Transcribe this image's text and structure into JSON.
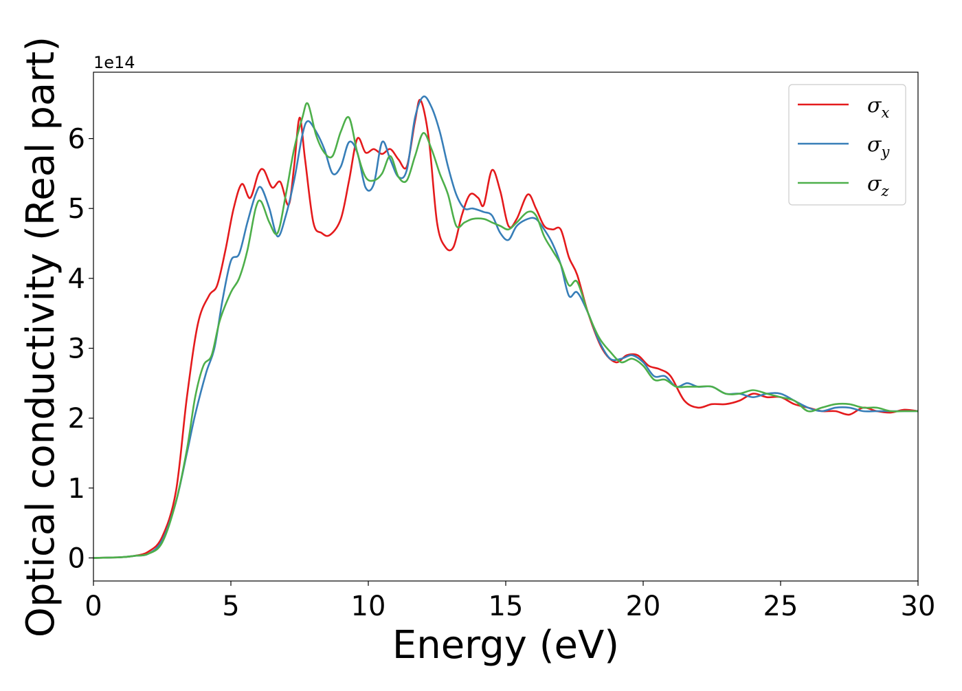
{
  "chart_data": {
    "type": "line",
    "xlabel": "Energy (eV)",
    "ylabel": "Optical conductivity (Real part)",
    "y_offset_label": "1e14",
    "xlim": [
      0,
      30
    ],
    "ylim": [
      -0.33,
      6.95
    ],
    "xticks": [
      0,
      5,
      10,
      15,
      20,
      25,
      30
    ],
    "yticks": [
      0,
      1,
      2,
      3,
      4,
      5,
      6
    ],
    "grid": false,
    "legend_position": "top-right",
    "series": [
      {
        "name": "σx",
        "symbol": "σ",
        "subscript": "x",
        "color": "#e41a1c",
        "points": [
          [
            0,
            0
          ],
          [
            1,
            0.01
          ],
          [
            1.5,
            0.03
          ],
          [
            2,
            0.09
          ],
          [
            2.5,
            0.3
          ],
          [
            3,
            0.95
          ],
          [
            3.4,
            2.3
          ],
          [
            3.8,
            3.35
          ],
          [
            4.2,
            3.75
          ],
          [
            4.5,
            3.9
          ],
          [
            4.8,
            4.4
          ],
          [
            5.1,
            5.0
          ],
          [
            5.4,
            5.35
          ],
          [
            5.7,
            5.15
          ],
          [
            6,
            5.5
          ],
          [
            6.2,
            5.55
          ],
          [
            6.5,
            5.3
          ],
          [
            6.8,
            5.38
          ],
          [
            7.1,
            5.05
          ],
          [
            7.3,
            5.6
          ],
          [
            7.5,
            6.3
          ],
          [
            7.7,
            5.7
          ],
          [
            8,
            4.8
          ],
          [
            8.3,
            4.65
          ],
          [
            8.6,
            4.62
          ],
          [
            9,
            4.85
          ],
          [
            9.3,
            5.4
          ],
          [
            9.6,
            6.0
          ],
          [
            9.9,
            5.8
          ],
          [
            10.2,
            5.85
          ],
          [
            10.5,
            5.78
          ],
          [
            10.8,
            5.85
          ],
          [
            11.1,
            5.7
          ],
          [
            11.4,
            5.6
          ],
          [
            11.7,
            6.25
          ],
          [
            11.9,
            6.55
          ],
          [
            12.2,
            6.0
          ],
          [
            12.5,
            4.8
          ],
          [
            12.8,
            4.45
          ],
          [
            13.1,
            4.45
          ],
          [
            13.4,
            4.9
          ],
          [
            13.7,
            5.2
          ],
          [
            14,
            5.15
          ],
          [
            14.2,
            5.05
          ],
          [
            14.5,
            5.55
          ],
          [
            14.8,
            5.25
          ],
          [
            15.1,
            4.75
          ],
          [
            15.4,
            4.85
          ],
          [
            15.8,
            5.2
          ],
          [
            16.1,
            5.0
          ],
          [
            16.4,
            4.75
          ],
          [
            16.7,
            4.7
          ],
          [
            17,
            4.7
          ],
          [
            17.3,
            4.3
          ],
          [
            17.6,
            4.05
          ],
          [
            18,
            3.5
          ],
          [
            18.5,
            3.0
          ],
          [
            19,
            2.8
          ],
          [
            19.4,
            2.9
          ],
          [
            19.8,
            2.9
          ],
          [
            20.2,
            2.75
          ],
          [
            20.6,
            2.7
          ],
          [
            21,
            2.6
          ],
          [
            21.5,
            2.25
          ],
          [
            22,
            2.15
          ],
          [
            22.5,
            2.2
          ],
          [
            23,
            2.2
          ],
          [
            23.5,
            2.25
          ],
          [
            24,
            2.35
          ],
          [
            24.5,
            2.3
          ],
          [
            25,
            2.3
          ],
          [
            25.5,
            2.2
          ],
          [
            26,
            2.15
          ],
          [
            26.5,
            2.1
          ],
          [
            27,
            2.1
          ],
          [
            27.5,
            2.05
          ],
          [
            28,
            2.15
          ],
          [
            28.5,
            2.1
          ],
          [
            29,
            2.08
          ],
          [
            29.5,
            2.12
          ],
          [
            30,
            2.1
          ]
        ]
      },
      {
        "name": "σy",
        "symbol": "σ",
        "subscript": "y",
        "color": "#377eb8",
        "points": [
          [
            0,
            0
          ],
          [
            1,
            0.01
          ],
          [
            1.5,
            0.03
          ],
          [
            2,
            0.06
          ],
          [
            2.5,
            0.25
          ],
          [
            3,
            0.8
          ],
          [
            3.4,
            1.5
          ],
          [
            3.7,
            2.05
          ],
          [
            4.1,
            2.65
          ],
          [
            4.4,
            3.0
          ],
          [
            4.7,
            3.7
          ],
          [
            5,
            4.25
          ],
          [
            5.3,
            4.35
          ],
          [
            5.6,
            4.8
          ],
          [
            5.9,
            5.2
          ],
          [
            6.1,
            5.3
          ],
          [
            6.4,
            5.0
          ],
          [
            6.7,
            4.6
          ],
          [
            7,
            4.9
          ],
          [
            7.3,
            5.4
          ],
          [
            7.6,
            6.05
          ],
          [
            7.8,
            6.25
          ],
          [
            8.1,
            6.1
          ],
          [
            8.4,
            5.85
          ],
          [
            8.7,
            5.5
          ],
          [
            9,
            5.6
          ],
          [
            9.3,
            5.95
          ],
          [
            9.6,
            5.8
          ],
          [
            9.9,
            5.3
          ],
          [
            10.2,
            5.35
          ],
          [
            10.5,
            5.95
          ],
          [
            10.8,
            5.7
          ],
          [
            11.1,
            5.45
          ],
          [
            11.4,
            5.55
          ],
          [
            11.7,
            6.3
          ],
          [
            12,
            6.6
          ],
          [
            12.3,
            6.45
          ],
          [
            12.6,
            6.1
          ],
          [
            12.9,
            5.6
          ],
          [
            13.2,
            5.2
          ],
          [
            13.5,
            5.0
          ],
          [
            13.8,
            5.0
          ],
          [
            14.2,
            4.95
          ],
          [
            14.5,
            4.9
          ],
          [
            14.8,
            4.65
          ],
          [
            15.1,
            4.55
          ],
          [
            15.4,
            4.75
          ],
          [
            15.8,
            4.85
          ],
          [
            16.1,
            4.85
          ],
          [
            16.4,
            4.7
          ],
          [
            16.7,
            4.5
          ],
          [
            17,
            4.2
          ],
          [
            17.3,
            3.75
          ],
          [
            17.6,
            3.8
          ],
          [
            18,
            3.5
          ],
          [
            18.4,
            3.1
          ],
          [
            18.8,
            2.85
          ],
          [
            19.2,
            2.85
          ],
          [
            19.6,
            2.9
          ],
          [
            20,
            2.8
          ],
          [
            20.4,
            2.6
          ],
          [
            20.8,
            2.6
          ],
          [
            21.2,
            2.45
          ],
          [
            21.6,
            2.5
          ],
          [
            22,
            2.45
          ],
          [
            22.5,
            2.45
          ],
          [
            23,
            2.35
          ],
          [
            23.5,
            2.35
          ],
          [
            24,
            2.3
          ],
          [
            24.5,
            2.35
          ],
          [
            25,
            2.35
          ],
          [
            25.5,
            2.25
          ],
          [
            26,
            2.15
          ],
          [
            26.5,
            2.1
          ],
          [
            27,
            2.15
          ],
          [
            27.5,
            2.15
          ],
          [
            28,
            2.1
          ],
          [
            28.5,
            2.1
          ],
          [
            29,
            2.1
          ],
          [
            29.5,
            2.1
          ],
          [
            30,
            2.1
          ]
        ]
      },
      {
        "name": "σz",
        "symbol": "σ",
        "subscript": "z",
        "color": "#4daf4a",
        "points": [
          [
            0,
            0
          ],
          [
            1,
            0.01
          ],
          [
            1.5,
            0.03
          ],
          [
            2,
            0.06
          ],
          [
            2.5,
            0.22
          ],
          [
            3,
            0.8
          ],
          [
            3.4,
            1.55
          ],
          [
            3.7,
            2.3
          ],
          [
            4,
            2.75
          ],
          [
            4.3,
            2.9
          ],
          [
            4.6,
            3.4
          ],
          [
            5,
            3.8
          ],
          [
            5.3,
            4.0
          ],
          [
            5.6,
            4.4
          ],
          [
            5.9,
            5.0
          ],
          [
            6.1,
            5.1
          ],
          [
            6.4,
            4.8
          ],
          [
            6.7,
            4.65
          ],
          [
            7,
            5.2
          ],
          [
            7.3,
            5.85
          ],
          [
            7.6,
            6.3
          ],
          [
            7.8,
            6.5
          ],
          [
            8.1,
            6.05
          ],
          [
            8.4,
            5.8
          ],
          [
            8.7,
            5.75
          ],
          [
            9,
            6.1
          ],
          [
            9.3,
            6.3
          ],
          [
            9.6,
            5.8
          ],
          [
            9.9,
            5.45
          ],
          [
            10.2,
            5.4
          ],
          [
            10.5,
            5.5
          ],
          [
            10.8,
            5.75
          ],
          [
            11.1,
            5.45
          ],
          [
            11.4,
            5.4
          ],
          [
            11.7,
            5.75
          ],
          [
            12,
            6.08
          ],
          [
            12.3,
            5.85
          ],
          [
            12.6,
            5.5
          ],
          [
            12.9,
            5.2
          ],
          [
            13.2,
            4.75
          ],
          [
            13.5,
            4.8
          ],
          [
            13.8,
            4.85
          ],
          [
            14.2,
            4.85
          ],
          [
            14.5,
            4.8
          ],
          [
            14.8,
            4.75
          ],
          [
            15.1,
            4.7
          ],
          [
            15.4,
            4.8
          ],
          [
            15.8,
            4.95
          ],
          [
            16.1,
            4.9
          ],
          [
            16.4,
            4.6
          ],
          [
            16.7,
            4.4
          ],
          [
            17,
            4.2
          ],
          [
            17.3,
            3.9
          ],
          [
            17.6,
            3.95
          ],
          [
            18,
            3.5
          ],
          [
            18.4,
            3.15
          ],
          [
            18.8,
            2.95
          ],
          [
            19.2,
            2.8
          ],
          [
            19.6,
            2.85
          ],
          [
            20,
            2.75
          ],
          [
            20.4,
            2.55
          ],
          [
            20.8,
            2.55
          ],
          [
            21.2,
            2.45
          ],
          [
            21.6,
            2.45
          ],
          [
            22,
            2.45
          ],
          [
            22.5,
            2.45
          ],
          [
            23,
            2.35
          ],
          [
            23.5,
            2.35
          ],
          [
            24,
            2.4
          ],
          [
            24.5,
            2.35
          ],
          [
            25,
            2.3
          ],
          [
            25.5,
            2.25
          ],
          [
            26,
            2.1
          ],
          [
            26.5,
            2.15
          ],
          [
            27,
            2.2
          ],
          [
            27.5,
            2.2
          ],
          [
            28,
            2.15
          ],
          [
            28.5,
            2.15
          ],
          [
            29,
            2.1
          ],
          [
            29.5,
            2.1
          ],
          [
            30,
            2.1
          ]
        ]
      }
    ]
  }
}
